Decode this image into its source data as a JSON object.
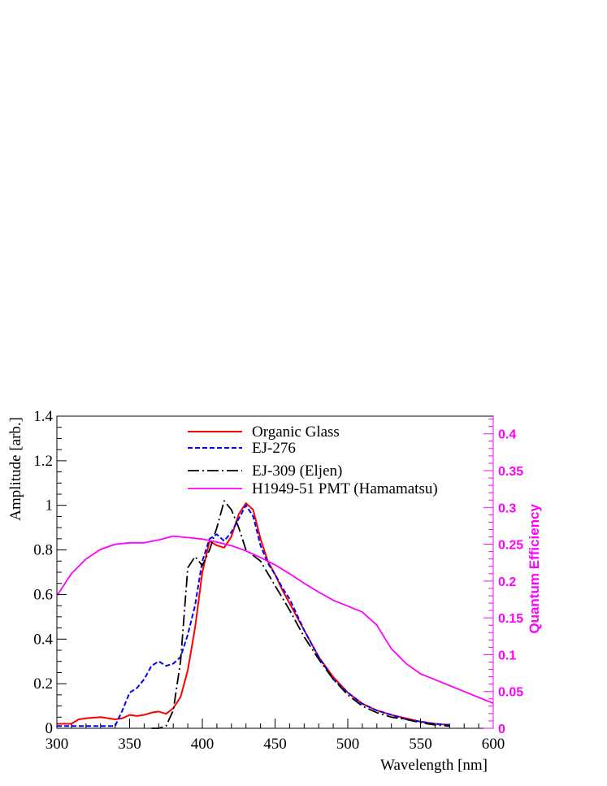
{
  "chart_data": {
    "type": "line",
    "xlabel": "Wavelength [nm]",
    "ylabel": "Amplitude [arb.]",
    "y2label": "Quantum Efficiency",
    "xlim": [
      300,
      600
    ],
    "ylim": [
      0,
      1.4
    ],
    "y2lim": [
      0,
      0.424
    ],
    "xticks": [
      "300",
      "350",
      "400",
      "450",
      "500",
      "550",
      "600"
    ],
    "yticks": [
      "0",
      "0.2",
      "0.4",
      "0.6",
      "0.8",
      "1",
      "1.2",
      "1.4"
    ],
    "y2ticks": [
      "0",
      "0.05",
      "0.1",
      "0.15",
      "0.2",
      "0.25",
      "0.3",
      "0.35",
      "0.4"
    ],
    "grid": false,
    "legend_position": "top-center",
    "colors": {
      "organic_glass": "#ff0000",
      "ej276": "#0000ff",
      "ej309": "#000000",
      "pmt": "#ff00ff",
      "right_axis": "#ff00ff"
    },
    "series": [
      {
        "name": "Organic Glass",
        "axis": "left",
        "style": "solid",
        "x": [
          300,
          310,
          315,
          320,
          330,
          340,
          345,
          350,
          355,
          360,
          365,
          370,
          375,
          380,
          385,
          390,
          395,
          400,
          405,
          410,
          415,
          420,
          425,
          430,
          435,
          440,
          445,
          450,
          455,
          460,
          465,
          470,
          475,
          480,
          490,
          500,
          510,
          520,
          530,
          540,
          550,
          560,
          570
        ],
        "y": [
          0.02,
          0.02,
          0.04,
          0.045,
          0.05,
          0.04,
          0.045,
          0.06,
          0.055,
          0.06,
          0.07,
          0.075,
          0.065,
          0.09,
          0.14,
          0.26,
          0.45,
          0.7,
          0.84,
          0.82,
          0.81,
          0.86,
          0.96,
          1.01,
          0.98,
          0.85,
          0.75,
          0.69,
          0.62,
          0.56,
          0.5,
          0.44,
          0.38,
          0.32,
          0.23,
          0.16,
          0.11,
          0.08,
          0.06,
          0.045,
          0.03,
          0.02,
          0.015
        ]
      },
      {
        "name": "EJ-276",
        "axis": "left",
        "style": "dashed",
        "x": [
          300,
          310,
          320,
          330,
          340,
          345,
          350,
          355,
          360,
          365,
          370,
          375,
          380,
          385,
          390,
          395,
          400,
          405,
          410,
          415,
          420,
          425,
          430,
          435,
          440,
          445,
          450,
          455,
          460,
          470,
          480,
          490,
          500,
          510,
          520,
          530,
          540,
          550,
          560,
          570
        ],
        "y": [
          0.01,
          0.01,
          0.01,
          0.01,
          0.01,
          0.08,
          0.16,
          0.18,
          0.22,
          0.28,
          0.3,
          0.28,
          0.29,
          0.32,
          0.42,
          0.55,
          0.75,
          0.85,
          0.87,
          0.84,
          0.88,
          0.94,
          1.0,
          0.95,
          0.82,
          0.74,
          0.69,
          0.63,
          0.58,
          0.44,
          0.32,
          0.22,
          0.16,
          0.11,
          0.08,
          0.06,
          0.04,
          0.03,
          0.02,
          0.015
        ]
      },
      {
        "name": "EJ-309 (Eljen)",
        "axis": "left",
        "style": "dash-dot",
        "x": [
          365,
          370,
          375,
          380,
          385,
          390,
          395,
          400,
          405,
          410,
          415,
          420,
          425,
          430,
          440,
          450,
          460,
          470,
          480,
          490,
          500,
          510,
          520,
          530,
          540,
          550,
          560,
          570
        ],
        "y": [
          0.0,
          0.0,
          0.01,
          0.08,
          0.3,
          0.72,
          0.77,
          0.73,
          0.8,
          0.9,
          1.02,
          0.98,
          0.9,
          0.8,
          0.75,
          0.64,
          0.53,
          0.41,
          0.31,
          0.22,
          0.15,
          0.1,
          0.07,
          0.05,
          0.04,
          0.025,
          0.015,
          0.01
        ]
      },
      {
        "name": "H1949-51 PMT (Hamamatsu)",
        "axis": "right",
        "style": "solid",
        "x": [
          300,
          310,
          320,
          330,
          340,
          350,
          360,
          370,
          380,
          390,
          400,
          410,
          420,
          430,
          440,
          450,
          460,
          470,
          480,
          490,
          500,
          510,
          520,
          530,
          540,
          550,
          560,
          570,
          580,
          590,
          600
        ],
        "y": [
          0.18,
          0.21,
          0.23,
          0.243,
          0.25,
          0.252,
          0.252,
          0.256,
          0.261,
          0.259,
          0.257,
          0.253,
          0.248,
          0.241,
          0.232,
          0.222,
          0.21,
          0.197,
          0.185,
          0.174,
          0.166,
          0.158,
          0.14,
          0.108,
          0.088,
          0.074,
          0.066,
          0.058,
          0.05,
          0.042,
          0.034
        ]
      }
    ]
  }
}
